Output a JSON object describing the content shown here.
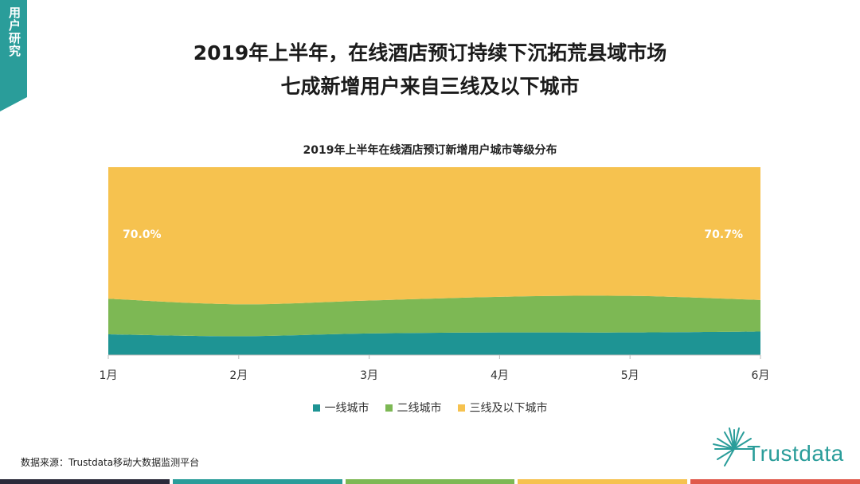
{
  "side_tab": {
    "label": "用户研究"
  },
  "header": {
    "title_line1": "2019年上半年，在线酒店预订持续下沉拓荒县域市场",
    "title_line2": "七成新增用户来自三线及以下城市"
  },
  "chart_data": {
    "type": "area",
    "stacked": true,
    "normalized": true,
    "title": "2019年上半年在线酒店预订新增用户城市等级分布",
    "categories": [
      "1月",
      "2月",
      "3月",
      "4月",
      "5月",
      "6月"
    ],
    "series": [
      {
        "name": "一线城市",
        "color": "#1e9494",
        "values": [
          11.0,
          10.0,
          11.5,
          12.0,
          12.0,
          12.5
        ]
      },
      {
        "name": "二线城市",
        "color": "#7db854",
        "values": [
          19.0,
          17.0,
          17.5,
          19.0,
          19.5,
          16.8
        ]
      },
      {
        "name": "三线及以下城市",
        "color": "#f6c24f",
        "values": [
          70.0,
          73.0,
          71.0,
          69.0,
          68.5,
          70.7
        ]
      }
    ],
    "data_labels": [
      {
        "series": "三线及以下城市",
        "category": "1月",
        "text": "70.0%"
      },
      {
        "series": "三线及以下城市",
        "category": "6月",
        "text": "70.7%"
      }
    ],
    "ylim": [
      0,
      100
    ],
    "legend_position": "bottom"
  },
  "footer": {
    "source": "数据来源：Trustdata移动大数据监测平台",
    "logo_text": "Trustdata",
    "stripe_colors": [
      "#2a2a3a",
      "#2a9d9a",
      "#7db854",
      "#f6c24f",
      "#e05a4b"
    ]
  }
}
